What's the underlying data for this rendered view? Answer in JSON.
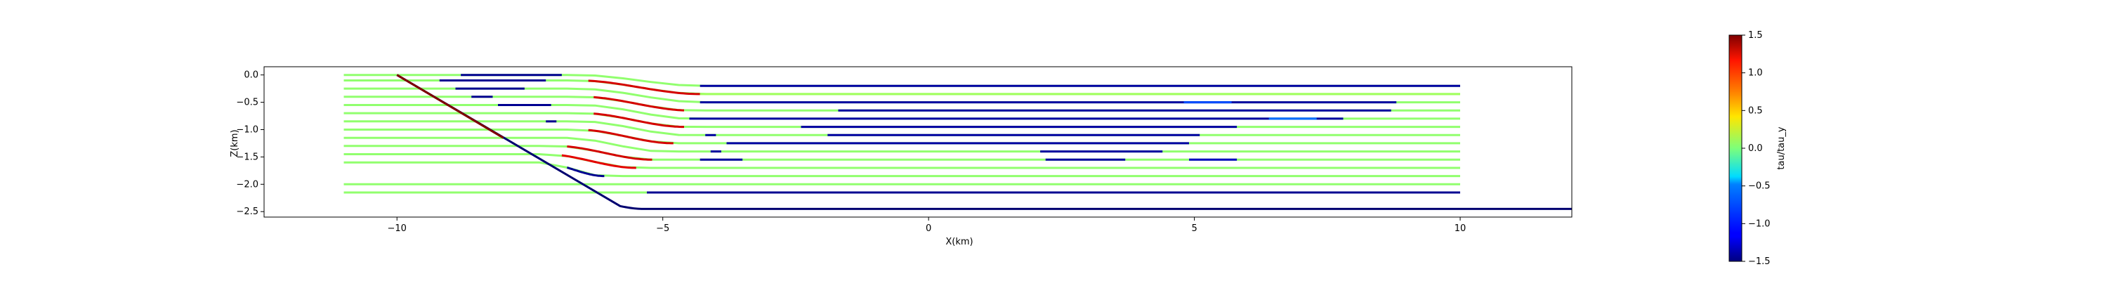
{
  "chart_data": {
    "type": "line",
    "title": "",
    "xlabel": "X(km)",
    "ylabel": "Z(km)",
    "xlim": [
      -12.5,
      12.1
    ],
    "ylim": [
      -2.6,
      0.15
    ],
    "xticks": [
      -10,
      -5,
      0,
      5,
      10
    ],
    "yticks": [
      0.0,
      -0.5,
      -1.0,
      -1.5,
      -2.0,
      -2.5
    ],
    "xtick_labels": [
      "−10",
      "−5",
      "0",
      "5",
      "10"
    ],
    "ytick_labels": [
      "0.0",
      "−0.5",
      "−1.0",
      "−1.5",
      "−2.0",
      "−2.5"
    ],
    "grid": false,
    "colormap": "jet",
    "colorbar": {
      "label": "tau/tau_y",
      "range": [
        -1.5,
        1.5
      ],
      "ticks": [
        1.5,
        1.0,
        0.5,
        0.0,
        -0.5,
        -1.0,
        -1.5
      ],
      "tick_labels": [
        "1.5",
        "1.0",
        "0.5",
        "0.0",
        "−0.5",
        "−1.0",
        "−1.5"
      ]
    },
    "boundary": {
      "slope_start": [
        -10.0,
        0.0
      ],
      "slope_end": [
        -5.8,
        -2.4
      ],
      "toe": [
        -5.4,
        -2.45
      ],
      "right_end": [
        12.1,
        -2.45
      ],
      "color": "#000070"
    },
    "levels": [
      -0.2,
      -0.35,
      -0.5,
      -0.65,
      -0.8,
      -0.95,
      -1.1,
      -1.25,
      -1.4,
      -1.55,
      -1.7,
      -1.85,
      -2.0,
      -2.15
    ],
    "series": [
      {
        "x0": -11.0,
        "x1": 10.0,
        "z": -0.2,
        "green_until": -6.4,
        "bend_from": -6.6,
        "bend_to": -4.3,
        "z_left": 0.0,
        "segments": [
          {
            "from": -8.8,
            "to": -6.9,
            "value": -1.45
          },
          {
            "from": -4.3,
            "to": 10.0,
            "value": -1.4
          }
        ]
      },
      {
        "x0": -11.0,
        "x1": 10.0,
        "z": -0.35,
        "green_until": -6.4,
        "bend_from": -6.6,
        "bend_to": -4.3,
        "z_left": -0.1,
        "segments": [
          {
            "from": -9.2,
            "to": -7.2,
            "value": -1.45
          },
          {
            "from": -6.4,
            "to": -4.3,
            "value": 1.25
          },
          {
            "from": -4.3,
            "to": 10.0,
            "value": 0.1
          }
        ]
      },
      {
        "x0": -11.0,
        "x1": 10.0,
        "z": -0.5,
        "green_until": -6.4,
        "bend_from": -6.6,
        "bend_to": -4.3,
        "z_left": -0.25,
        "segments": [
          {
            "from": -8.9,
            "to": -7.6,
            "value": -1.45
          },
          {
            "from": -4.3,
            "to": 8.8,
            "value": -1.4
          },
          {
            "from": 4.8,
            "to": 5.7,
            "value": -0.9
          }
        ]
      },
      {
        "x0": -11.0,
        "x1": 10.0,
        "z": -0.65,
        "green_until": -6.3,
        "bend_from": -6.5,
        "bend_to": -4.5,
        "z_left": -0.4,
        "segments": [
          {
            "from": -8.6,
            "to": -8.2,
            "value": -1.45
          },
          {
            "from": -6.3,
            "to": -4.6,
            "value": 1.25
          },
          {
            "from": -1.7,
            "to": 8.7,
            "value": -1.4
          }
        ]
      },
      {
        "x0": -11.0,
        "x1": 10.0,
        "z": -0.8,
        "green_until": -6.3,
        "bend_from": -6.5,
        "bend_to": -4.5,
        "z_left": -0.55,
        "segments": [
          {
            "from": -8.1,
            "to": -7.1,
            "value": -1.45
          },
          {
            "from": -4.5,
            "to": 7.8,
            "value": -1.4
          },
          {
            "from": 6.4,
            "to": 7.3,
            "value": -0.8
          }
        ]
      },
      {
        "x0": -11.0,
        "x1": 10.0,
        "z": -0.95,
        "green_until": -6.3,
        "bend_from": -6.5,
        "bend_to": -4.6,
        "z_left": -0.7,
        "segments": [
          {
            "from": -6.3,
            "to": -4.6,
            "value": 1.25
          },
          {
            "from": -2.4,
            "to": 5.8,
            "value": -1.4
          }
        ]
      },
      {
        "x0": -11.0,
        "x1": 10.0,
        "z": -1.1,
        "green_until": -6.3,
        "bend_from": -6.5,
        "bend_to": -4.6,
        "z_left": -0.85,
        "segments": [
          {
            "from": -7.2,
            "to": -7.0,
            "value": -1.45
          },
          {
            "from": -4.2,
            "to": -4.0,
            "value": -1.4
          },
          {
            "from": -1.9,
            "to": 5.1,
            "value": -1.4
          }
        ]
      },
      {
        "x0": -11.0,
        "x1": 10.0,
        "z": -1.25,
        "green_until": -6.4,
        "bend_from": -6.6,
        "bend_to": -4.8,
        "z_left": -1.0,
        "segments": [
          {
            "from": -6.4,
            "to": -4.8,
            "value": 1.25
          },
          {
            "from": -3.8,
            "to": 4.9,
            "value": -1.4
          }
        ]
      },
      {
        "x0": -11.0,
        "x1": 10.0,
        "z": -1.4,
        "green_until": -6.6,
        "bend_from": -6.8,
        "bend_to": -5.0,
        "z_left": -1.15,
        "segments": [
          {
            "from": -4.1,
            "to": -3.9,
            "value": -1.4
          },
          {
            "from": 2.1,
            "to": 4.4,
            "value": -1.4
          }
        ]
      },
      {
        "x0": -11.0,
        "x1": 10.0,
        "z": -1.55,
        "green_until": -6.8,
        "bend_from": -7.0,
        "bend_to": -5.2,
        "z_left": -1.3,
        "segments": [
          {
            "from": -6.8,
            "to": -5.2,
            "value": 1.25
          },
          {
            "from": -4.3,
            "to": -3.5,
            "value": -1.4
          },
          {
            "from": 2.2,
            "to": 3.7,
            "value": -1.4
          },
          {
            "from": 4.9,
            "to": 5.8,
            "value": -1.3
          }
        ]
      },
      {
        "x0": -11.0,
        "x1": 10.0,
        "z": -1.7,
        "green_until": -7.0,
        "bend_from": -7.2,
        "bend_to": -5.5,
        "z_left": -1.45,
        "segments": [
          {
            "from": -6.9,
            "to": -5.5,
            "value": 1.2
          }
        ]
      },
      {
        "x0": -11.0,
        "x1": 10.0,
        "z": -1.85,
        "green_until": -7.1,
        "bend_from": -7.3,
        "bend_to": -6.1,
        "z_left": -1.6,
        "segments": [
          {
            "from": -6.8,
            "to": -6.1,
            "value": -1.45
          }
        ]
      },
      {
        "x0": -11.0,
        "x1": 10.0,
        "z": -2.0,
        "green_until": -6.1,
        "bend_from": -99,
        "bend_to": -99,
        "z_left": -2.0,
        "segments": []
      },
      {
        "x0": -11.0,
        "x1": 10.0,
        "z": -2.15,
        "green_until": -6.1,
        "bend_from": -99,
        "bend_to": -99,
        "z_left": -2.15,
        "segments": [
          {
            "from": -5.3,
            "to": 10.0,
            "value": -1.45
          }
        ]
      }
    ]
  }
}
